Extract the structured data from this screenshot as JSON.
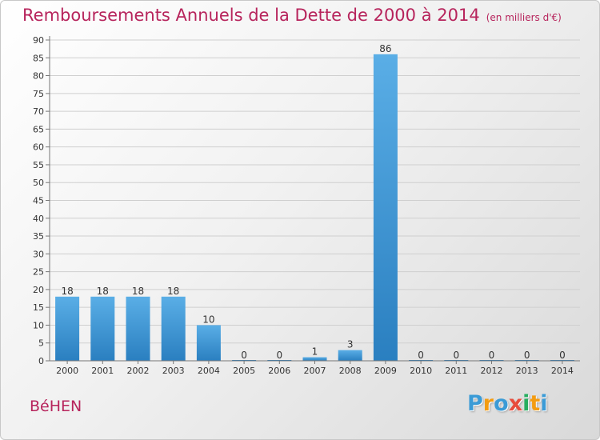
{
  "title": "Remboursements Annuels de la Dette de 2000 à 2014",
  "unit": "(en milliers d'€)",
  "commune": "BéHEN",
  "logo": {
    "letters": [
      "P",
      "r",
      "o",
      "x",
      "i",
      "t",
      "i"
    ],
    "colors": [
      "#3b9bd6",
      "#f39c12",
      "#3b9bd6",
      "#e74c3c",
      "#27ae60",
      "#f39c12",
      "#3b9bd6"
    ]
  },
  "chart_data": {
    "type": "bar",
    "categories": [
      "2000",
      "2001",
      "2002",
      "2003",
      "2004",
      "2005",
      "2006",
      "2007",
      "2008",
      "2009",
      "2010",
      "2011",
      "2012",
      "2013",
      "2014"
    ],
    "values": [
      18,
      18,
      18,
      18,
      10,
      0,
      0,
      1,
      3,
      86,
      0,
      0,
      0,
      0,
      0
    ],
    "ylim": [
      0,
      90
    ],
    "yticks": [
      0,
      5,
      10,
      15,
      20,
      25,
      30,
      35,
      40,
      45,
      50,
      55,
      60,
      65,
      70,
      75,
      80,
      85,
      90
    ],
    "grid": true,
    "colors": {
      "bar_light": "#5aaee6",
      "bar_dark": "#2a7fc0",
      "axis": "#777777",
      "grid": "#cfcfcf",
      "text": "#333333"
    }
  }
}
